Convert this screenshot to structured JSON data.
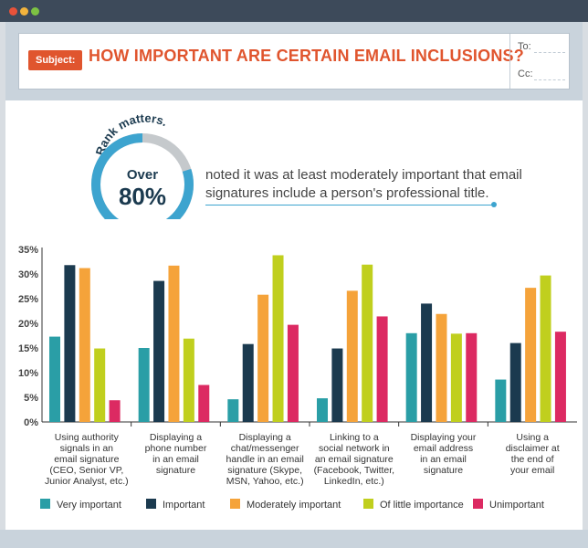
{
  "header": {
    "subject_label": "Subject:",
    "subject_text": "HOW IMPORTANT ARE CERTAIN EMAIL INCLUSIONS?",
    "to_label": "To:",
    "cc_label": "Cc:"
  },
  "highlight": {
    "arc_text": "Rank matters.",
    "over_label": "Over",
    "percent_label": "80%",
    "percent_value": 80,
    "description": "noted it was at least moderately important that email signatures include a person's professional title."
  },
  "colors": {
    "very_important": "#2a9ea6",
    "important": "#1b3a4f",
    "moderately_important": "#f5a33a",
    "of_little_importance": "#c0cf1e",
    "unimportant": "#dc2a62",
    "ring": "#3da4cf",
    "ring_bg": "#c5c9cc"
  },
  "chart_data": {
    "type": "bar",
    "title": "",
    "xlabel": "",
    "ylabel": "",
    "ylim": [
      0,
      35
    ],
    "yticks": [
      "0%",
      "5%",
      "10%",
      "15%",
      "20%",
      "25%",
      "30%",
      "35%"
    ],
    "grid": false,
    "legend_position": "bottom",
    "categories": [
      [
        "Using authority",
        "signals in an",
        "email signature",
        "(CEO, Senior VP,",
        "Junior Analyst, etc.)"
      ],
      [
        "Displaying a",
        "phone number",
        "in an email",
        "signature"
      ],
      [
        "Displaying a",
        "chat/messenger",
        "handle in an email",
        "signature (Skype,",
        "MSN, Yahoo, etc.)"
      ],
      [
        "Linking to a",
        "social network in",
        "an email signature",
        "(Facebook, Twitter,",
        "LinkedIn, etc.)"
      ],
      [
        "Displaying your",
        "email address",
        "in an email",
        "signature"
      ],
      [
        "Using a",
        "disclaimer at",
        "the end of",
        "your email"
      ]
    ],
    "series": [
      {
        "name": "Very important",
        "values": [
          17.3,
          15.0,
          4.6,
          4.8,
          18.0,
          8.6
        ]
      },
      {
        "name": "Important",
        "values": [
          31.8,
          28.6,
          15.8,
          14.9,
          24.0,
          16.0
        ]
      },
      {
        "name": "Moderately important",
        "values": [
          31.2,
          31.7,
          25.8,
          26.6,
          21.9,
          27.2
        ]
      },
      {
        "name": "Of little importance",
        "values": [
          14.9,
          16.9,
          33.8,
          31.9,
          17.9,
          29.7
        ]
      },
      {
        "name": "Unimportant",
        "values": [
          4.4,
          7.5,
          19.7,
          21.4,
          18.0,
          18.3
        ]
      }
    ]
  }
}
